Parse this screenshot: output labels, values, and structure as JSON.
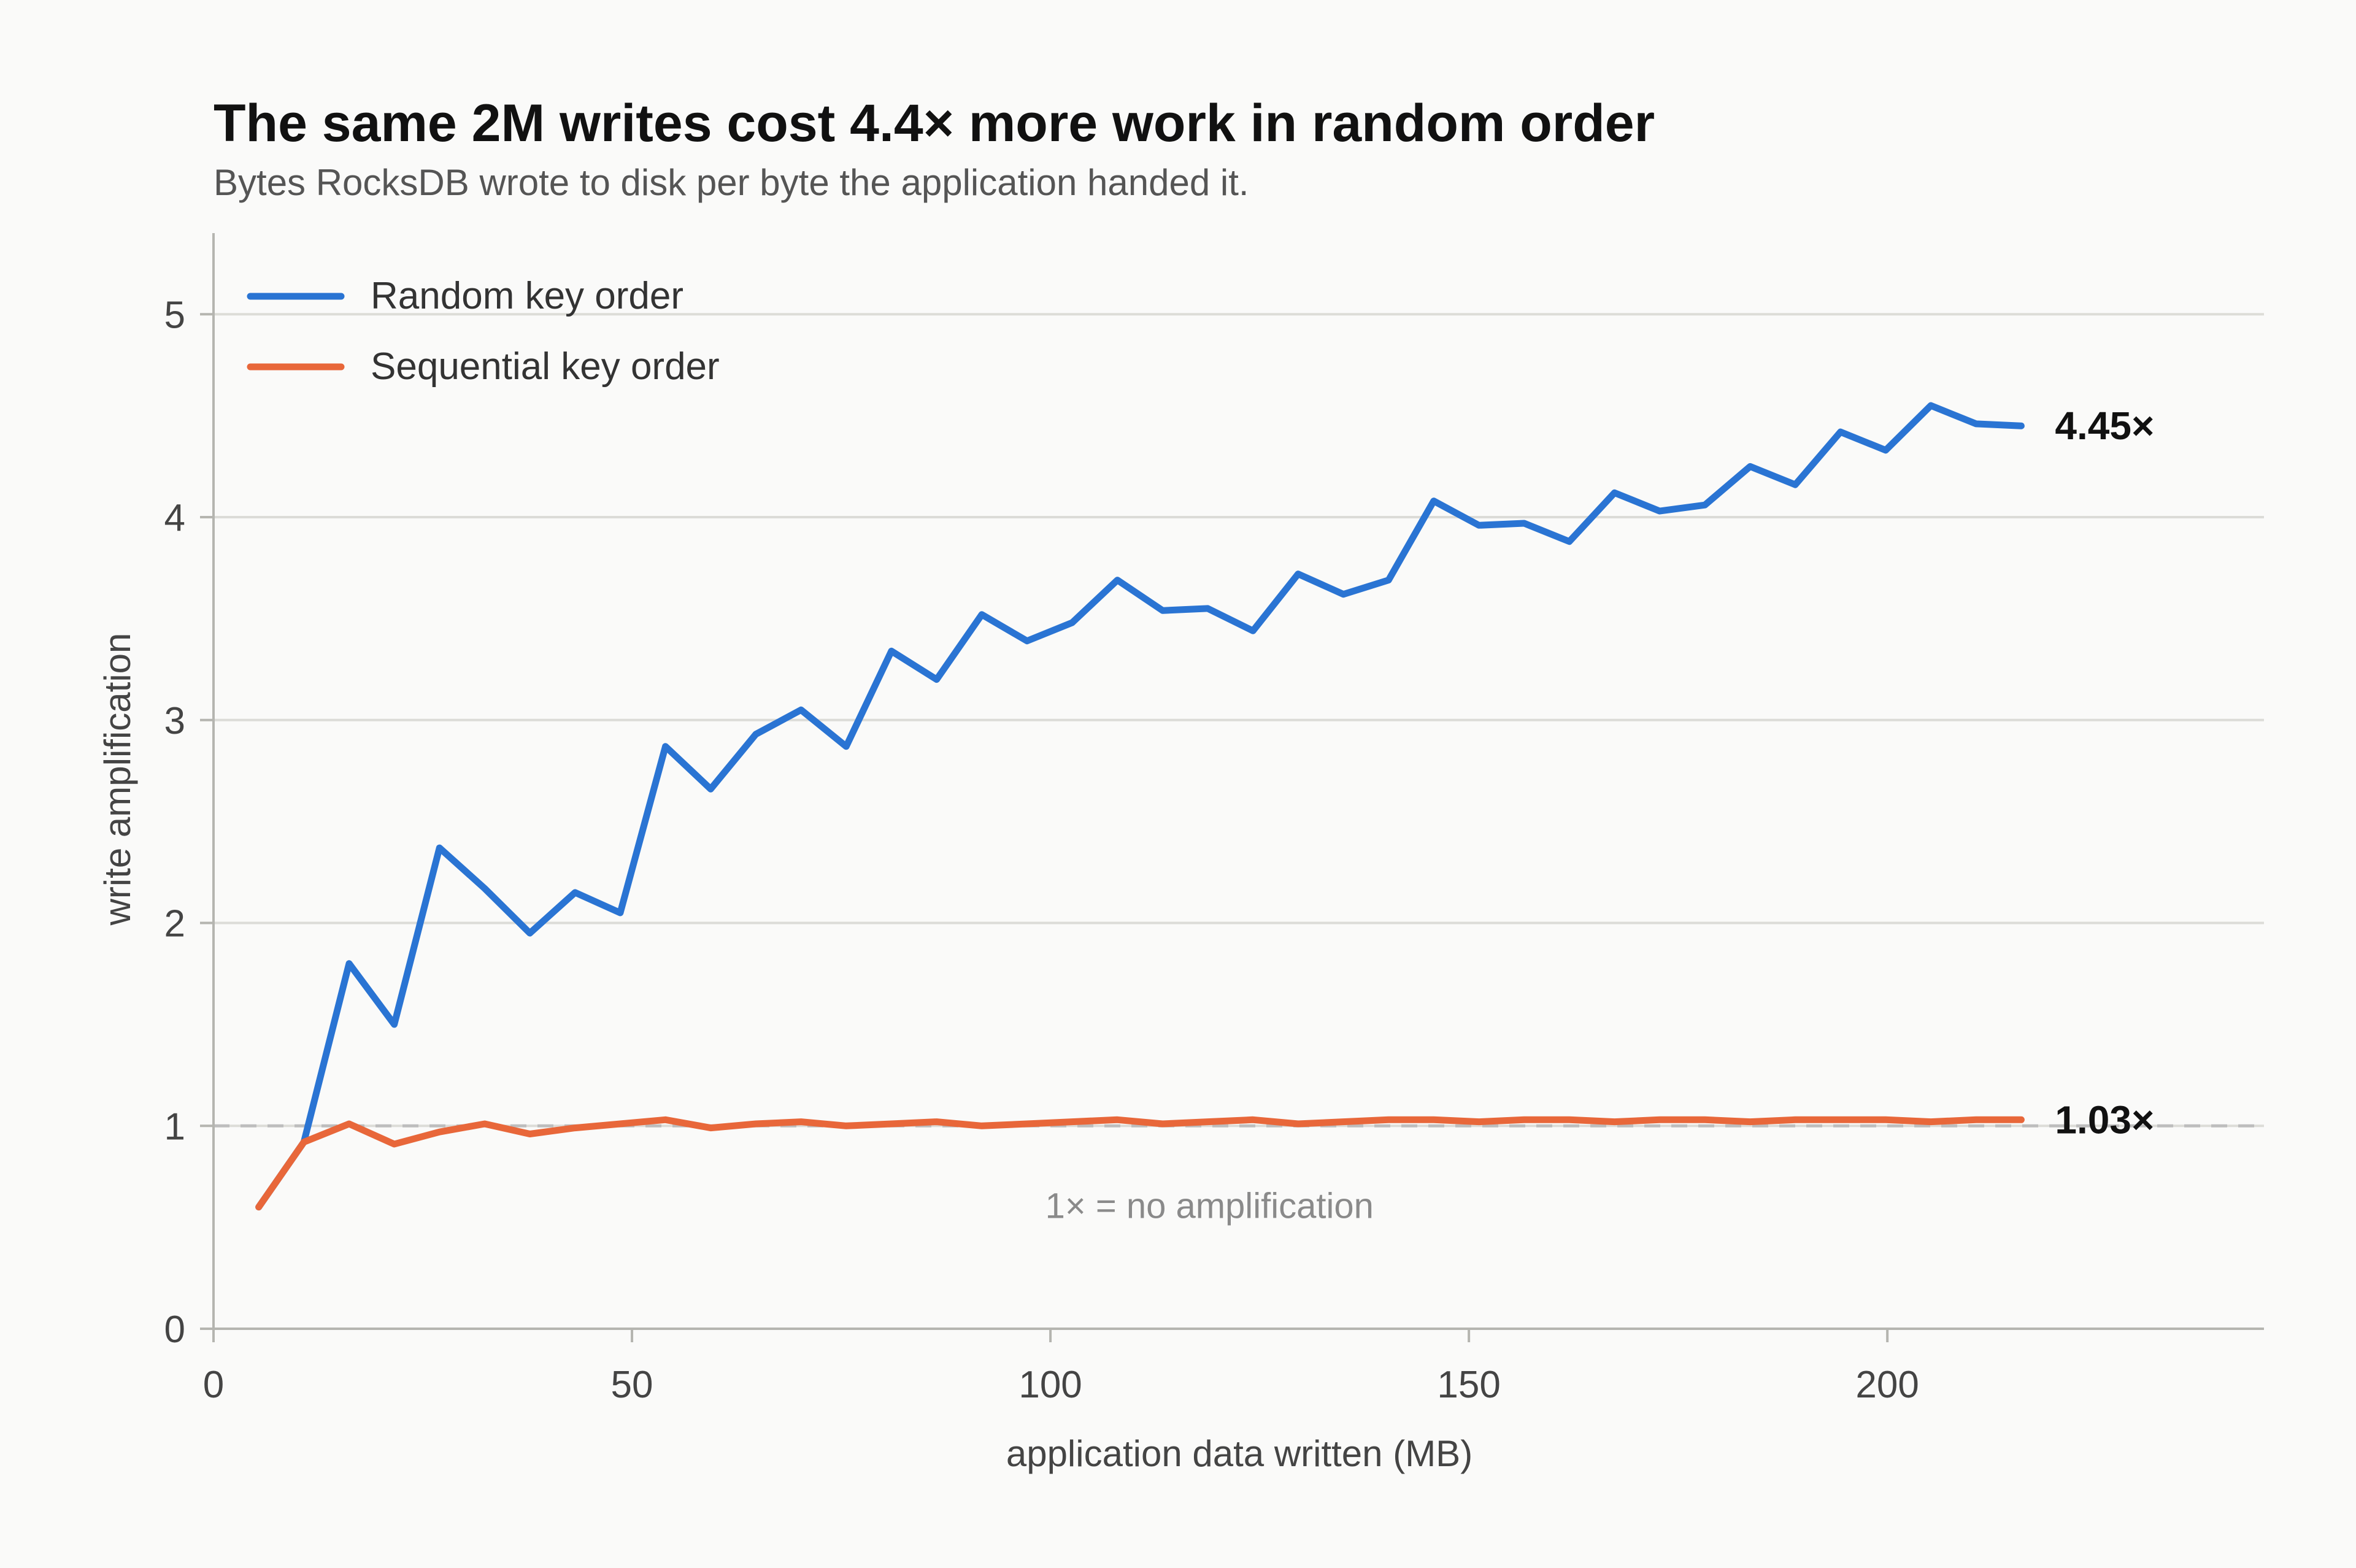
{
  "chart_data": {
    "type": "line",
    "title": "The same 2M writes cost 4.4× more work in random order",
    "subtitle": "Bytes RocksDB wrote to disk per byte the application handed it.",
    "xlabel": "application data written (MB)",
    "ylabel": "write amplification",
    "xlim": [
      0,
      245
    ],
    "ylim": [
      0,
      5.4
    ],
    "x_ticks": [
      0,
      50,
      100,
      150,
      200
    ],
    "x_tick_labels": [
      "0",
      "50",
      "100",
      "150",
      "200"
    ],
    "y_ticks": [
      0,
      1,
      2,
      3,
      4,
      5
    ],
    "y_tick_labels": [
      "0",
      "1",
      "2",
      "3",
      "4",
      "5"
    ],
    "grid": "horizontal",
    "legend_position": "top-left",
    "x": [
      5.4,
      10.8,
      16.2,
      21.6,
      27,
      32.4,
      37.8,
      43.2,
      48.6,
      54,
      59.4,
      64.8,
      70.2,
      75.6,
      81,
      86.4,
      91.8,
      97.2,
      102.6,
      108,
      113.4,
      118.8,
      124.2,
      129.6,
      135,
      140.4,
      145.8,
      151.2,
      156.6,
      162,
      167.4,
      172.8,
      178.2,
      183.6,
      189,
      194.4,
      199.8,
      205.2,
      210.6,
      216
    ],
    "series": [
      {
        "name": "Random key order",
        "color": "#2a74d3",
        "values": [
          0.6,
          0.92,
          1.8,
          1.5,
          2.37,
          2.17,
          1.95,
          2.15,
          2.05,
          2.87,
          2.66,
          2.93,
          3.05,
          2.87,
          3.34,
          3.2,
          3.52,
          3.39,
          3.48,
          3.69,
          3.54,
          3.55,
          3.44,
          3.72,
          3.62,
          3.69,
          4.08,
          3.96,
          3.97,
          3.88,
          4.12,
          4.03,
          4.06,
          4.25,
          4.16,
          4.42,
          4.33,
          4.55,
          4.46,
          4.45
        ],
        "end_label": "4.45×"
      },
      {
        "name": "Sequential key order",
        "color": "#e8673a",
        "values": [
          0.6,
          0.92,
          1.01,
          0.91,
          0.97,
          1.01,
          0.96,
          0.99,
          1.01,
          1.03,
          0.99,
          1.01,
          1.02,
          1.0,
          1.01,
          1.02,
          1.0,
          1.01,
          1.02,
          1.03,
          1.01,
          1.02,
          1.03,
          1.01,
          1.02,
          1.03,
          1.03,
          1.02,
          1.03,
          1.03,
          1.02,
          1.03,
          1.03,
          1.02,
          1.03,
          1.03,
          1.03,
          1.02,
          1.03,
          1.03
        ],
        "end_label": "1.03×"
      }
    ],
    "reference_line": {
      "y": 1,
      "label": "1× = no amplification",
      "color": "#bdbdbd"
    },
    "colors": {
      "background": "#fafaf9",
      "grid": "#dcdcd8",
      "axis": "#b5b5b0"
    }
  }
}
